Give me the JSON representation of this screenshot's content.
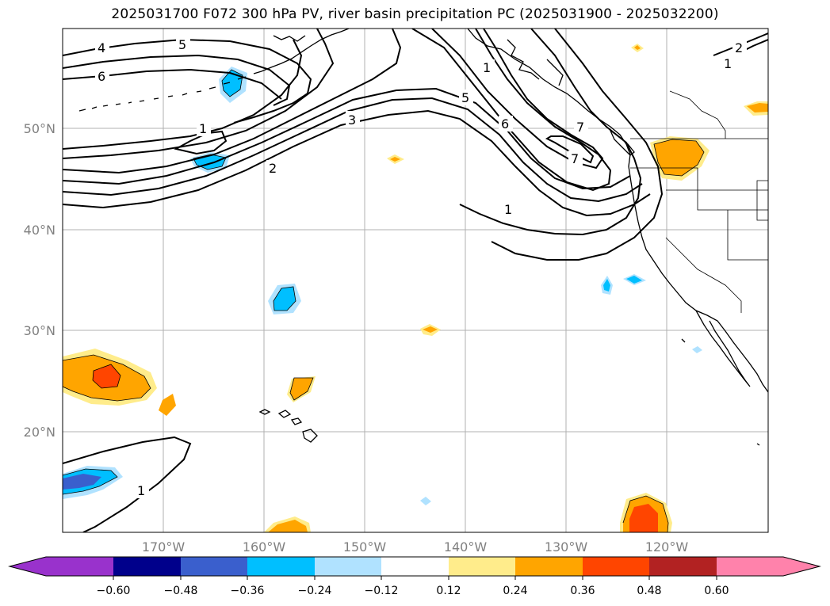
{
  "title": "2025031700 F072 300 hPa PV, river basin precipitation PC (2025031900 - 2025032200)",
  "map": {
    "lat_ticks": [
      "50°N",
      "40°N",
      "30°N",
      "20°N"
    ],
    "lon_ticks": [
      "170°W",
      "160°W",
      "150°W",
      "140°W",
      "130°W",
      "120°W"
    ],
    "pv_contour_labels": [
      "4",
      "5",
      "6",
      "1",
      "3",
      "2",
      "1",
      "5",
      "6",
      "7",
      "1",
      "2",
      "1",
      "1",
      "7"
    ]
  },
  "colorbar": {
    "ticks": [
      "−0.60",
      "−0.48",
      "−0.36",
      "−0.24",
      "−0.12",
      "0.12",
      "0.24",
      "0.36",
      "0.48",
      "0.60"
    ],
    "colors": [
      "#9932cc",
      "#00008b",
      "#3a5fcd",
      "#00bfff",
      "#b0e2ff",
      "#ffffff",
      "#ffec8b",
      "#ffa500",
      "#ff4500",
      "#b22222",
      "#ff82ab"
    ]
  }
}
